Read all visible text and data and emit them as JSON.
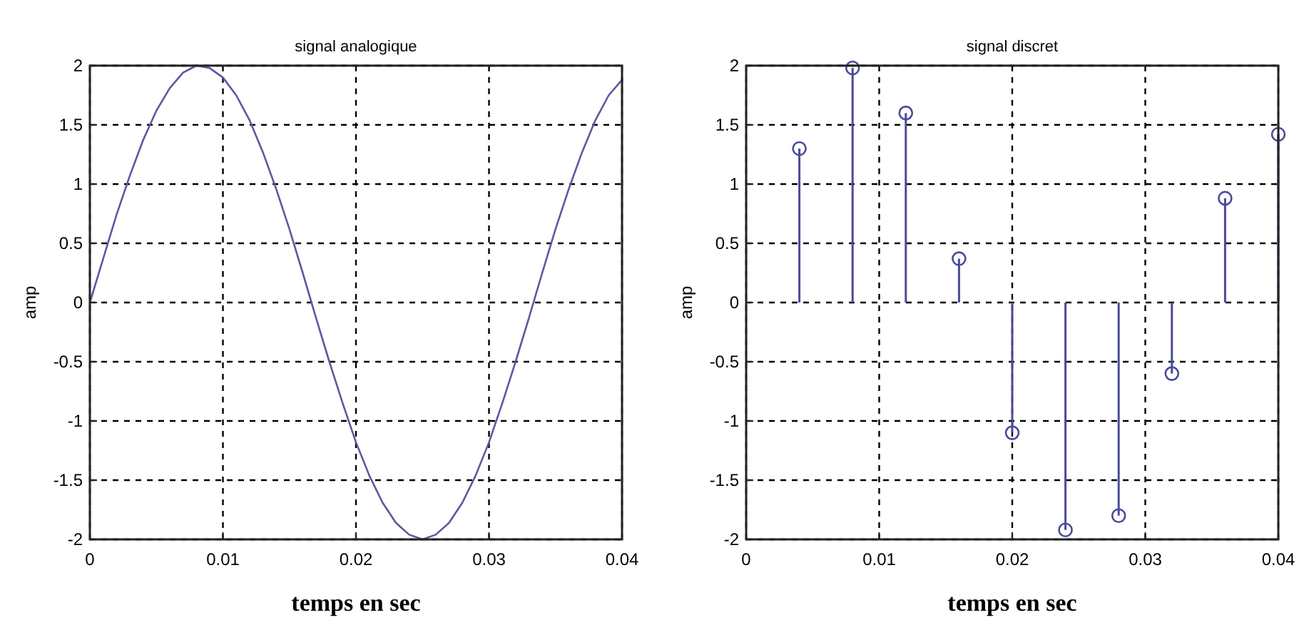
{
  "chart_data": [
    {
      "type": "line",
      "title": "signal analogique",
      "xlabel": "temps en sec",
      "ylabel": "amp",
      "x": [
        0,
        0.001,
        0.002,
        0.003,
        0.004,
        0.005,
        0.006,
        0.007,
        0.008,
        0.009,
        0.01,
        0.011,
        0.012,
        0.013,
        0.014,
        0.015,
        0.016,
        0.017,
        0.018,
        0.019,
        0.02,
        0.021,
        0.022,
        0.023,
        0.024,
        0.025,
        0.026,
        0.027,
        0.028,
        0.029,
        0.03,
        0.031,
        0.032,
        0.033,
        0.034,
        0.035,
        0.036,
        0.037,
        0.038,
        0.039,
        0.04
      ],
      "series": [
        {
          "color": "#5a5aa0",
          "values": [
            0,
            0.37,
            0.74,
            1.07,
            1.37,
            1.62,
            1.81,
            1.94,
            2.0,
            1.98,
            1.9,
            1.75,
            1.54,
            1.27,
            0.96,
            0.62,
            0.25,
            -0.13,
            -0.5,
            -0.85,
            -1.18,
            -1.46,
            -1.69,
            -1.86,
            -1.96,
            -2.0,
            -1.96,
            -1.86,
            -1.69,
            -1.46,
            -1.18,
            -0.85,
            -0.5,
            -0.13,
            0.25,
            0.62,
            0.96,
            1.27,
            1.54,
            1.75,
            1.88
          ]
        }
      ],
      "xlim": [
        0,
        0.04
      ],
      "xticks": [
        0,
        0.01,
        0.02,
        0.03,
        0.04
      ],
      "ylim": [
        -2,
        2
      ],
      "yticks": [
        -2,
        -1.5,
        -1,
        -0.5,
        0,
        0.5,
        1,
        1.5,
        2
      ],
      "grid": true,
      "marker": "none",
      "line_style": "solid"
    },
    {
      "type": "lollipop",
      "title": "signal discret",
      "xlabel": "temps en sec",
      "ylabel": "amp",
      "x": [
        0.004,
        0.008,
        0.012,
        0.016,
        0.02,
        0.024,
        0.028,
        0.032,
        0.036,
        0.04
      ],
      "series": [
        {
          "color": "#4a4a9a",
          "values": [
            1.3,
            1.98,
            1.6,
            0.37,
            -1.1,
            -1.92,
            -1.8,
            -0.6,
            0.88,
            1.42
          ]
        }
      ],
      "xlim": [
        0,
        0.04
      ],
      "xticks": [
        0,
        0.01,
        0.02,
        0.03,
        0.04
      ],
      "ylim": [
        -2,
        2
      ],
      "yticks": [
        -2,
        -1.5,
        -1,
        -0.5,
        0,
        0.5,
        1,
        1.5,
        2
      ],
      "grid": true,
      "marker": "circle"
    }
  ]
}
